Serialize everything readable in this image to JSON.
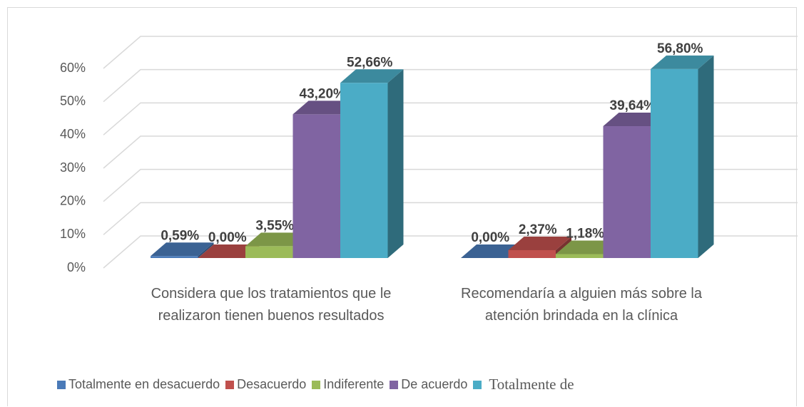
{
  "chart_data": {
    "type": "bar",
    "categories": [
      "Considera que los tratamientos que le realizaron tienen buenos resultados",
      "Recomendaría a alguien más sobre la atención brindada en la clínica"
    ],
    "series": [
      {
        "name": "Totalmente en desacuerdo",
        "color": "#4a7ab8",
        "values": [
          0.59,
          0.0
        ],
        "value_labels": [
          "0,59%",
          "0,00%"
        ]
      },
      {
        "name": "Desacuerdo",
        "color": "#c0504d",
        "values": [
          0.0,
          2.37
        ],
        "value_labels": [
          "0,00%",
          "2,37%"
        ]
      },
      {
        "name": "Indiferente",
        "color": "#9bbb59",
        "values": [
          3.55,
          1.18
        ],
        "value_labels": [
          "3,55%",
          "1,18%"
        ]
      },
      {
        "name": "De acuerdo",
        "color": "#8064a2",
        "values": [
          43.2,
          39.64
        ],
        "value_labels": [
          "43,20%",
          "39,64%"
        ]
      },
      {
        "name": "Totalmente de",
        "color": "#4bacc6",
        "values": [
          52.66,
          56.8
        ],
        "value_labels": [
          "52,66%",
          "56,80%"
        ]
      }
    ],
    "ylim": [
      0,
      60
    ],
    "yticks": [
      {
        "value": 0,
        "label": "0%"
      },
      {
        "value": 10,
        "label": "10%"
      },
      {
        "value": 20,
        "label": "20%"
      },
      {
        "value": 30,
        "label": "30%"
      },
      {
        "value": 40,
        "label": "40%"
      },
      {
        "value": 50,
        "label": "50%"
      },
      {
        "value": 60,
        "label": "60%"
      }
    ],
    "grid": true
  }
}
